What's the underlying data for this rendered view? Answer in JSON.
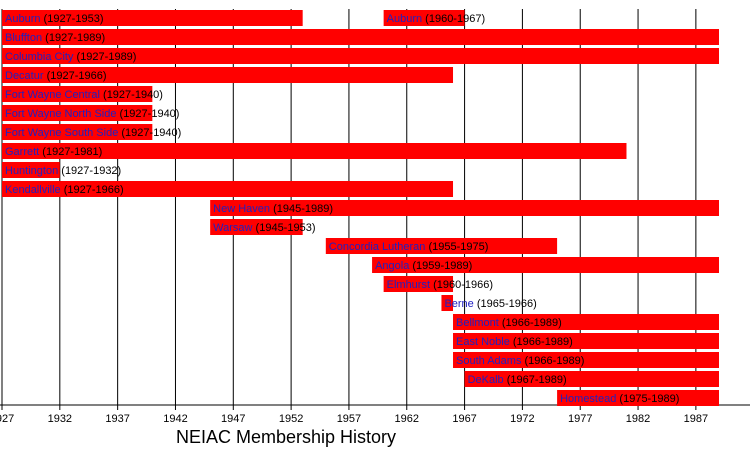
{
  "chart_data": {
    "type": "timeline",
    "title": "NEIAC Membership History",
    "xlim": [
      1927,
      1989
    ],
    "xticks": [
      1927,
      1932,
      1937,
      1942,
      1947,
      1952,
      1957,
      1962,
      1967,
      1972,
      1977,
      1982,
      1987
    ],
    "grid": true,
    "color": "#ff0000",
    "name_color": "#2020c0",
    "rows": [
      {
        "bars": [
          {
            "name": "Auburn",
            "label": "(1927-1953)",
            "start": 1927,
            "end": 1953
          },
          {
            "name": "Auburn",
            "label": "(1960-1967)",
            "start": 1960,
            "end": 1967
          }
        ]
      },
      {
        "bars": [
          {
            "name": "Bluffton",
            "label": "(1927-1989)",
            "start": 1927,
            "end": 1989
          }
        ]
      },
      {
        "bars": [
          {
            "name": "Columbia City",
            "label": "(1927-1989)",
            "start": 1927,
            "end": 1989
          }
        ]
      },
      {
        "bars": [
          {
            "name": "Decatur",
            "label": "(1927-1966)",
            "start": 1927,
            "end": 1966
          }
        ]
      },
      {
        "bars": [
          {
            "name": "Fort Wayne Central",
            "label": "(1927-1940)",
            "start": 1927,
            "end": 1940
          }
        ]
      },
      {
        "bars": [
          {
            "name": "Fort Wayne North Side",
            "label": "(1927-1940)",
            "start": 1927,
            "end": 1940
          }
        ]
      },
      {
        "bars": [
          {
            "name": "Fort Wayne South Side",
            "label": "(1927-1940)",
            "start": 1927,
            "end": 1940
          }
        ]
      },
      {
        "bars": [
          {
            "name": "Garrett",
            "label": "(1927-1981)",
            "start": 1927,
            "end": 1981
          }
        ]
      },
      {
        "bars": [
          {
            "name": "Huntington",
            "label": "(1927-1932)",
            "start": 1927,
            "end": 1932
          }
        ]
      },
      {
        "bars": [
          {
            "name": "Kendallville",
            "label": "(1927-1966)",
            "start": 1927,
            "end": 1966
          }
        ]
      },
      {
        "bars": [
          {
            "name": "New Haven",
            "label": "(1945-1989)",
            "start": 1945,
            "end": 1989
          }
        ]
      },
      {
        "bars": [
          {
            "name": "Warsaw",
            "label": "(1945-1953)",
            "start": 1945,
            "end": 1953
          }
        ]
      },
      {
        "bars": [
          {
            "name": "Concordia Lutheran",
            "label": "(1955-1975)",
            "start": 1955,
            "end": 1975
          }
        ]
      },
      {
        "bars": [
          {
            "name": "Angola",
            "label": "(1959-1989)",
            "start": 1959,
            "end": 1989
          }
        ]
      },
      {
        "bars": [
          {
            "name": "Elmhurst",
            "label": "(1960-1966)",
            "start": 1960,
            "end": 1966
          }
        ]
      },
      {
        "bars": [
          {
            "name": "Berne",
            "label": "(1965-1966)",
            "start": 1965,
            "end": 1966
          }
        ]
      },
      {
        "bars": [
          {
            "name": "Bellmont",
            "label": "(1966-1989)",
            "start": 1966,
            "end": 1989
          }
        ]
      },
      {
        "bars": [
          {
            "name": "East Noble",
            "label": "(1966-1989)",
            "start": 1966,
            "end": 1989
          }
        ]
      },
      {
        "bars": [
          {
            "name": "South Adams",
            "label": "(1966-1989)",
            "start": 1966,
            "end": 1989
          }
        ]
      },
      {
        "bars": [
          {
            "name": "DeKalb",
            "label": "(1967-1989)",
            "start": 1967,
            "end": 1989
          }
        ]
      },
      {
        "bars": [
          {
            "name": "Homestead",
            "label": "(1975-1989)",
            "start": 1975,
            "end": 1989
          }
        ]
      }
    ]
  }
}
